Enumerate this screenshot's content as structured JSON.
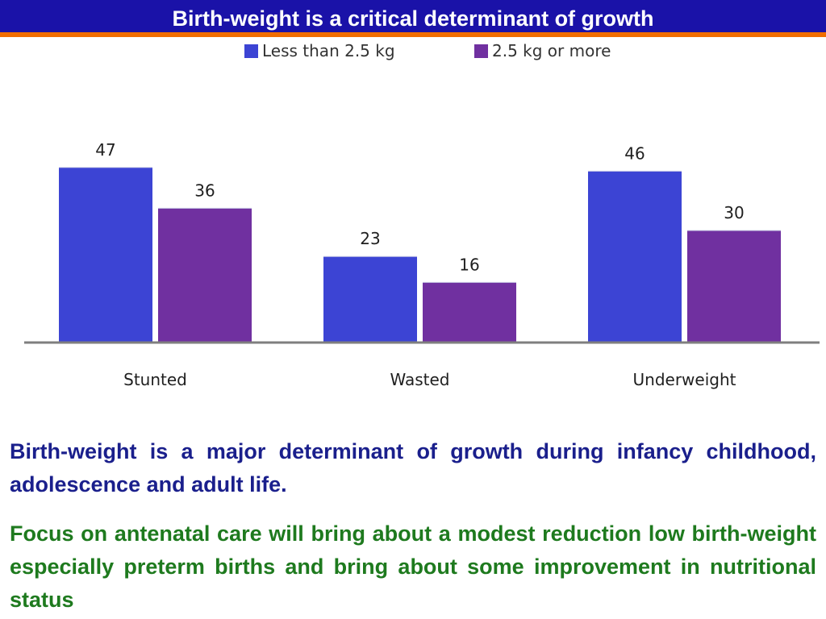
{
  "slide": {
    "title": "Birth-weight is a critical determinant of  growth",
    "paragraphs": [
      "Birth-weight is a major determinant of  growth  during infancy childhood, adolescence and adult life.",
      "Focus on antenatal care will bring about a  modest  reduction low birth-weight especially  preterm births and bring about some improvement in nutritional status"
    ]
  },
  "colors": {
    "title_bar": "#1a12a8",
    "title_underline": "#f06d00",
    "para1": "#1a1f8c",
    "para2": "#1e7a1e"
  },
  "chart_data": {
    "type": "bar",
    "title": "",
    "xlabel": "",
    "ylabel": "",
    "categories": [
      "Stunted",
      "Wasted",
      "Underweight"
    ],
    "series": [
      {
        "name": "Less than 2.5 kg",
        "values": [
          47,
          23,
          46
        ],
        "color": "#3c44d4"
      },
      {
        "name": "2.5 kg or more",
        "values": [
          36,
          16,
          30
        ],
        "color": "#7030a0"
      }
    ],
    "ylim": [
      0,
      50
    ],
    "legend": "top-center",
    "grid": false,
    "data_labels": true
  }
}
